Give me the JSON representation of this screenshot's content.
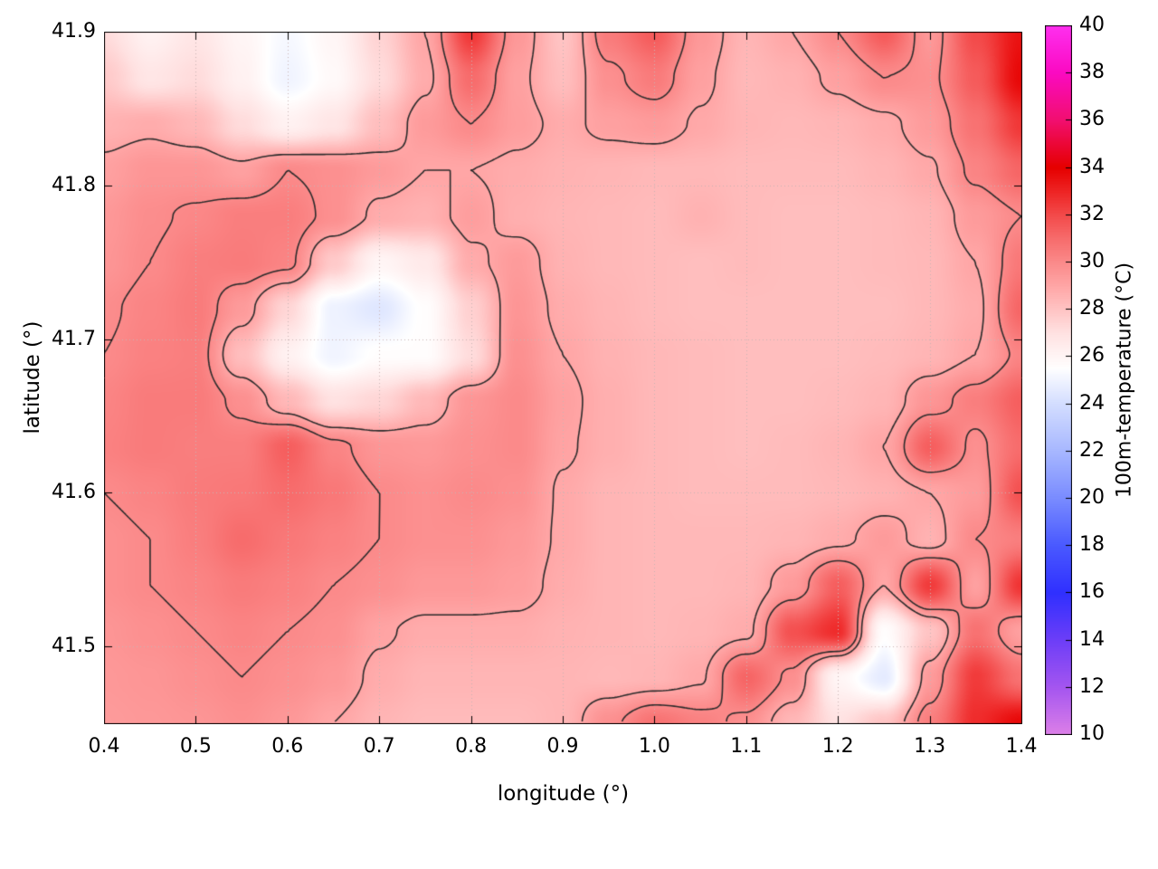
{
  "chart_data": {
    "type": "heatmap",
    "xlabel": "longitude (°)",
    "ylabel": "latitude (°)",
    "colorbar_label": "100m-temperature (°C)",
    "xlim": [
      0.4,
      1.4
    ],
    "ylim": [
      41.45,
      41.9
    ],
    "x_ticks": [
      0.4,
      0.5,
      0.6,
      0.7,
      0.8,
      0.9,
      1.0,
      1.1,
      1.2,
      1.3,
      1.4
    ],
    "x_tick_labels": [
      "0.4",
      "0.5",
      "0.6",
      "0.7",
      "0.8",
      "0.9",
      "1.0",
      "1.1",
      "1.2",
      "1.3",
      "1.4"
    ],
    "y_ticks": [
      41.5,
      41.6,
      41.7,
      41.8,
      41.9
    ],
    "y_tick_labels": [
      "41.5",
      "41.6",
      "41.7",
      "41.8",
      "41.9"
    ],
    "colorbar_range": [
      10,
      40
    ],
    "colorbar_ticks": [
      10,
      12,
      14,
      16,
      18,
      20,
      22,
      24,
      26,
      28,
      30,
      32,
      34,
      36,
      38,
      40
    ],
    "colorbar_tick_labels": [
      "10",
      "12",
      "14",
      "16",
      "18",
      "20",
      "22",
      "24",
      "26",
      "28",
      "30",
      "32",
      "34",
      "36",
      "38",
      "40"
    ],
    "grid_on": true,
    "contour_levels": [
      29,
      30
    ],
    "style": {
      "contour_color": "#2b2b2b",
      "grid_line_color": "#c9b4b4",
      "axis_color": "#000000",
      "background": "#ffffff"
    },
    "palette": [
      {
        "v": 10,
        "color": "#dd80e8"
      },
      {
        "v": 12,
        "color": "#a556f0"
      },
      {
        "v": 14,
        "color": "#6d3ef8"
      },
      {
        "v": 16,
        "color": "#3030ff"
      },
      {
        "v": 18,
        "color": "#4a5aff"
      },
      {
        "v": 20,
        "color": "#7a8cff"
      },
      {
        "v": 22,
        "color": "#a8b8ff"
      },
      {
        "v": 24,
        "color": "#d4deff"
      },
      {
        "v": 25.5,
        "color": "#ffffff"
      },
      {
        "v": 27,
        "color": "#ffe2e2"
      },
      {
        "v": 28,
        "color": "#ffc4c4"
      },
      {
        "v": 29,
        "color": "#ffa6a6"
      },
      {
        "v": 30,
        "color": "#fb8a8a"
      },
      {
        "v": 31,
        "color": "#f76c6c"
      },
      {
        "v": 32,
        "color": "#f34a4a"
      },
      {
        "v": 33,
        "color": "#ee2424"
      },
      {
        "v": 34,
        "color": "#e60000"
      },
      {
        "v": 36,
        "color": "#f20f70"
      },
      {
        "v": 38,
        "color": "#fb0ac2"
      },
      {
        "v": 40,
        "color": "#ff30f0"
      }
    ],
    "grid": {
      "nx": 21,
      "ny": 16,
      "order": "rows top-to-bottom (lat 41.90 to 41.45), cols left-to-right (lon 0.40 to 1.40)",
      "values": [
        [
          27.2,
          26.2,
          26.8,
          26.0,
          25.2,
          26.0,
          27.5,
          29.0,
          32.5,
          29.5,
          28.0,
          30.5,
          31.5,
          29.5,
          28.5,
          29.0,
          30.0,
          31.5,
          29.5,
          32.0,
          33.5
        ],
        [
          27.8,
          26.8,
          27.2,
          26.2,
          25.0,
          25.8,
          27.2,
          28.8,
          31.0,
          29.2,
          28.2,
          29.8,
          30.5,
          29.2,
          28.4,
          28.6,
          29.2,
          30.0,
          29.8,
          31.5,
          33.8
        ],
        [
          28.6,
          28.8,
          28.4,
          27.2,
          26.2,
          26.8,
          28.2,
          29.4,
          30.0,
          29.3,
          28.8,
          29.2,
          29.4,
          28.9,
          28.5,
          28.4,
          28.5,
          28.8,
          29.4,
          30.8,
          32.5
        ],
        [
          29.2,
          29.6,
          29.6,
          29.2,
          30.0,
          29.8,
          29.4,
          29.0,
          29.0,
          28.8,
          28.6,
          28.5,
          28.4,
          28.4,
          28.3,
          28.3,
          28.3,
          28.5,
          28.9,
          30.2,
          31.2
        ],
        [
          29.5,
          29.9,
          30.1,
          30.4,
          30.4,
          29.8,
          28.8,
          28.6,
          29.3,
          28.7,
          28.5,
          28.4,
          28.3,
          28.6,
          28.3,
          28.2,
          28.2,
          28.3,
          28.5,
          29.4,
          30.0
        ],
        [
          29.6,
          30.0,
          30.4,
          30.5,
          30.2,
          27.8,
          26.0,
          26.6,
          28.8,
          29.4,
          28.6,
          28.4,
          28.3,
          28.2,
          28.3,
          28.2,
          28.2,
          28.3,
          28.4,
          29.0,
          30.6
        ],
        [
          29.9,
          30.2,
          30.5,
          29.4,
          27.4,
          24.9,
          24.4,
          25.6,
          27.6,
          29.6,
          28.8,
          28.5,
          28.3,
          28.2,
          28.2,
          28.2,
          28.2,
          28.2,
          28.4,
          28.8,
          31.2
        ],
        [
          30.0,
          30.3,
          30.4,
          28.2,
          26.2,
          25.0,
          25.6,
          25.6,
          27.2,
          29.8,
          29.0,
          28.6,
          28.4,
          28.3,
          28.2,
          28.2,
          28.2,
          28.3,
          28.5,
          29.0,
          30.2
        ],
        [
          30.2,
          30.5,
          30.5,
          29.8,
          28.4,
          27.0,
          27.4,
          28.4,
          29.6,
          30.0,
          29.2,
          28.7,
          28.4,
          28.3,
          28.2,
          28.2,
          28.3,
          28.5,
          29.6,
          30.4,
          31.4
        ],
        [
          30.3,
          30.5,
          30.4,
          30.4,
          31.4,
          30.2,
          29.6,
          29.5,
          29.8,
          30.0,
          29.1,
          28.7,
          28.4,
          28.3,
          28.2,
          28.3,
          28.5,
          29.0,
          31.4,
          29.8,
          31.0
        ],
        [
          30.0,
          30.2,
          30.5,
          30.6,
          31.0,
          30.6,
          30.0,
          29.8,
          30.0,
          29.8,
          28.9,
          28.5,
          28.4,
          28.3,
          28.3,
          28.3,
          28.4,
          28.6,
          29.0,
          29.4,
          31.8
        ],
        [
          29.8,
          30.0,
          30.4,
          31.0,
          30.6,
          30.3,
          30.0,
          29.8,
          29.8,
          29.5,
          28.9,
          28.5,
          28.4,
          28.4,
          28.4,
          28.5,
          28.8,
          29.4,
          28.6,
          30.0,
          30.4
        ],
        [
          29.8,
          30.0,
          30.2,
          30.5,
          30.3,
          30.0,
          29.8,
          29.5,
          29.5,
          29.3,
          28.8,
          28.5,
          28.4,
          28.4,
          28.5,
          29.4,
          31.4,
          29.0,
          32.4,
          29.2,
          32.6
        ],
        [
          29.6,
          29.8,
          30.0,
          30.2,
          30.0,
          29.8,
          29.1,
          28.8,
          28.8,
          28.8,
          28.6,
          28.5,
          28.4,
          28.5,
          28.8,
          31.8,
          32.8,
          25.6,
          28.0,
          30.8,
          29.2
        ],
        [
          29.5,
          29.6,
          29.8,
          30.0,
          29.8,
          29.5,
          28.8,
          28.5,
          28.5,
          28.5,
          28.5,
          28.4,
          28.5,
          28.9,
          31.2,
          29.8,
          26.0,
          24.6,
          29.4,
          32.4,
          30.8
        ],
        [
          29.4,
          29.5,
          29.6,
          29.8,
          29.5,
          29.0,
          28.5,
          28.3,
          28.3,
          28.3,
          28.5,
          29.8,
          30.8,
          30.3,
          29.8,
          28.4,
          27.0,
          28.0,
          30.4,
          32.8,
          33.8
        ]
      ]
    }
  }
}
